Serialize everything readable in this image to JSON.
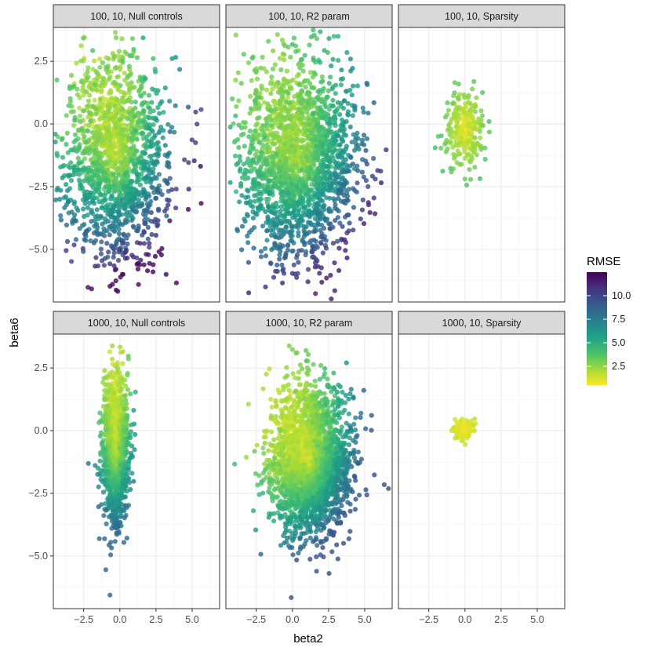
{
  "chart_data": {
    "type": "scatter",
    "xlabel": "beta2",
    "ylabel": "beta6",
    "xlim": [
      -4.6,
      6.9
    ],
    "ylim": [
      -7.1,
      3.85
    ],
    "x_ticks": [
      -2.5,
      0.0,
      2.5,
      5.0
    ],
    "x_tick_labels": [
      "−2.5",
      "0.0",
      "2.5",
      "5.0"
    ],
    "y_ticks": [
      -5.0,
      -2.5,
      0.0,
      2.5
    ],
    "y_tick_labels": [
      "−5.0",
      "−2.5",
      "0.0",
      "2.5"
    ],
    "grid": true,
    "legend": {
      "title": "RMSE",
      "position": "right",
      "range": [
        0.5,
        12.5
      ],
      "breaks": [
        2.5,
        5.0,
        7.5,
        10.0
      ],
      "break_labels": [
        "2.5",
        "5.0",
        "7.5",
        "10.0"
      ],
      "colors": [
        "#fde725",
        "#a0da39",
        "#4ac16d",
        "#1fa187",
        "#277f8e",
        "#365c8d",
        "#46327e",
        "#440154"
      ]
    },
    "panels": [
      {
        "title": "100, 10, Null controls",
        "n": 1600,
        "cx": -0.2,
        "cy": -1.4,
        "sx": 1.75,
        "sy": 1.95,
        "rmse_min": 1.5,
        "rmse_max": 12.2,
        "dir": [
          0.35,
          -0.94
        ]
      },
      {
        "title": "100, 10, R2 param",
        "n": 2000,
        "cx": 0.5,
        "cy": -1.5,
        "sx": 2.0,
        "sy": 1.95,
        "rmse_min": 2.0,
        "rmse_max": 11.5,
        "dir": [
          0.5,
          -0.87
        ]
      },
      {
        "title": "100, 10, Sparsity",
        "n": 260,
        "cx": 0.0,
        "cy": -0.2,
        "sx": 0.62,
        "sy": 0.78,
        "rmse_min": 0.6,
        "rmse_max": 5.5,
        "dir": [
          0,
          0
        ]
      },
      {
        "title": "1000, 10, Null controls",
        "n": 1500,
        "cx": -0.3,
        "cy": -0.8,
        "sx": 0.42,
        "sy": 1.35,
        "rmse_min": 0.8,
        "rmse_max": 8.5,
        "dir": [
          0.1,
          -1.0
        ]
      },
      {
        "title": "1000, 10, R2 param",
        "n": 2600,
        "cx": 1.2,
        "cy": -1.2,
        "sx": 1.35,
        "sy": 1.4,
        "rmse_min": 1.0,
        "rmse_max": 9.5,
        "dir": [
          0.72,
          -0.7
        ]
      },
      {
        "title": "1000, 10, Sparsity",
        "n": 130,
        "cx": -0.1,
        "cy": 0.05,
        "sx": 0.32,
        "sy": 0.2,
        "rmse_min": 0.5,
        "rmse_max": 2.0,
        "dir": [
          0,
          0
        ]
      }
    ]
  }
}
